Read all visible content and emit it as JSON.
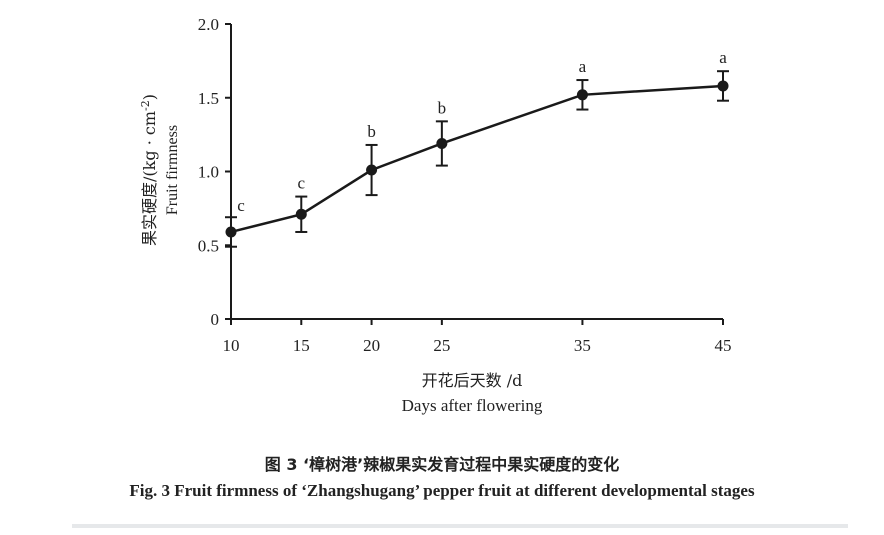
{
  "chart_data": {
    "type": "line",
    "x": [
      10,
      15,
      20,
      25,
      35,
      45
    ],
    "xticks": [
      "10",
      "15",
      "20",
      "25",
      "35",
      "45"
    ],
    "series": [
      {
        "values": [
          0.59,
          0.71,
          1.01,
          1.19,
          1.52,
          1.58
        ],
        "errors": [
          0.1,
          0.12,
          0.17,
          0.15,
          0.1,
          0.1
        ],
        "significance": [
          "c",
          "c",
          "b",
          "b",
          "a",
          "a"
        ],
        "color": "#1a1a1a"
      }
    ],
    "ylim": [
      0,
      2.0
    ],
    "yticks": [
      "0",
      "0.5",
      "1.0",
      "1.5",
      "2.0"
    ],
    "ylabel_cn": "果实硬度/(kg · cm",
    "ylabel_unit_sup": "-2",
    "ylabel_close": ")",
    "ylabel_en": "Fruit firmness",
    "xlabel_cn": "开花后天数 /d",
    "xlabel_en": "Days after flowering",
    "grid": false,
    "legend": "none"
  },
  "caption": {
    "cn": "图 3 ‘樟树港’辣椒果实发育过程中果实硬度的变化",
    "en": "Fig. 3 Fruit firmness of ‘Zhangshugang’ pepper fruit at different developmental stages"
  }
}
